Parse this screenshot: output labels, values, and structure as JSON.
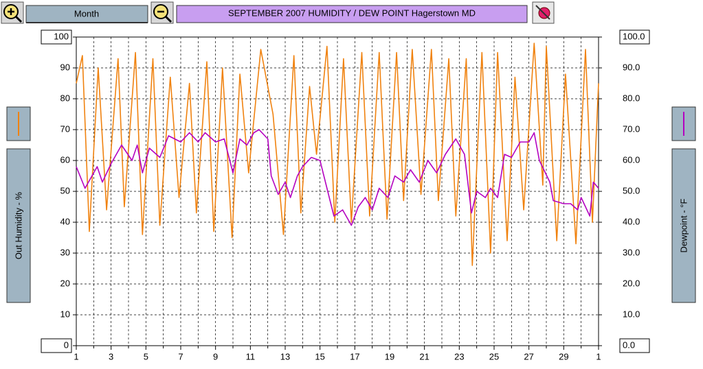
{
  "toolbar": {
    "period_button": "Month"
  },
  "chart_data": {
    "type": "line",
    "title": "SEPTEMBER 2007  HUMIDITY / DEW POINT  Hagerstown MD",
    "xlim": [
      1,
      31
    ],
    "xticks": [
      1,
      3,
      5,
      7,
      9,
      11,
      13,
      15,
      17,
      19,
      21,
      23,
      25,
      27,
      29,
      {
        "value": 31,
        "label": "1"
      }
    ],
    "xminor_ticks": [
      2,
      4,
      6,
      8,
      10,
      12,
      14,
      16,
      18,
      20,
      22,
      24,
      26,
      28,
      30
    ],
    "ylim": [
      0,
      100
    ],
    "yticks": [
      0,
      10,
      20,
      30,
      40,
      50,
      60,
      70,
      80,
      90,
      100
    ],
    "y2lim": [
      0,
      100
    ],
    "y2ticks": [
      {
        "value": 0,
        "label": "0.0"
      },
      {
        "value": 10,
        "label": "10.0"
      },
      {
        "value": 20,
        "label": "20.0"
      },
      {
        "value": 30,
        "label": "30.0"
      },
      {
        "value": 40,
        "label": "40.0"
      },
      {
        "value": 50,
        "label": "50.0"
      },
      {
        "value": 60,
        "label": "60.0"
      },
      {
        "value": 70,
        "label": "70.0"
      },
      {
        "value": 80,
        "label": "80.0"
      },
      {
        "value": 90,
        "label": "90.0"
      },
      {
        "value": 100,
        "label": "100.0"
      }
    ],
    "grid": true,
    "series": [
      {
        "name": "Out Humidity - %",
        "color": "#f0820f",
        "axis": "y",
        "x": [
          1.0,
          1.35,
          1.75,
          2.26,
          2.74,
          3.4,
          3.76,
          4.4,
          4.8,
          5.4,
          5.8,
          6.4,
          6.9,
          7.5,
          7.9,
          8.5,
          8.9,
          9.4,
          9.95,
          10.4,
          10.9,
          11.6,
          12.3,
          12.9,
          13.5,
          13.9,
          14.4,
          14.8,
          15.4,
          15.85,
          16.35,
          16.8,
          17.4,
          17.85,
          18.4,
          18.85,
          19.4,
          19.8,
          20.3,
          20.8,
          21.4,
          21.8,
          22.4,
          22.8,
          23.4,
          23.75,
          24.3,
          24.8,
          25.2,
          25.75,
          26.2,
          26.7,
          27.3,
          27.8,
          28.0,
          28.6,
          29.1,
          29.7,
          30.25,
          30.65,
          31.0
        ],
        "values": [
          85,
          94,
          37,
          90,
          44,
          93,
          45,
          95,
          36,
          93,
          39,
          87,
          48,
          85,
          43,
          92,
          37,
          90,
          35,
          88,
          56,
          96,
          75,
          36,
          94,
          43,
          84,
          62,
          97,
          40,
          93,
          40,
          95,
          42,
          95,
          41,
          95,
          47,
          96,
          49,
          96,
          47,
          93,
          42,
          93,
          26,
          95,
          30,
          95,
          34,
          87,
          44,
          98,
          52,
          97,
          34,
          88,
          33,
          96,
          40,
          85
        ]
      },
      {
        "name": "Dewpoint - °F",
        "color": "#b400c0",
        "axis": "y2",
        "x": [
          1.0,
          1.5,
          2.2,
          2.5,
          3.0,
          3.6,
          4.2,
          4.5,
          4.8,
          5.2,
          5.8,
          6.3,
          7.0,
          7.5,
          8.0,
          8.4,
          9.0,
          9.5,
          10.0,
          10.4,
          10.8,
          11.2,
          11.5,
          12.0,
          12.2,
          12.6,
          13.0,
          13.3,
          13.7,
          14.0,
          14.5,
          15.0,
          15.4,
          15.8,
          16.3,
          16.8,
          17.2,
          17.6,
          18.0,
          18.4,
          18.9,
          19.3,
          19.8,
          20.2,
          20.7,
          21.2,
          21.7,
          22.2,
          22.8,
          23.3,
          23.7,
          24.0,
          24.5,
          24.8,
          25.2,
          25.6,
          26.0,
          26.5,
          27.0,
          27.3,
          27.6,
          28.2,
          28.4,
          29.0,
          29.4,
          29.8,
          30.0,
          30.5,
          30.7,
          31.0
        ],
        "values": [
          58,
          51,
          58,
          53,
          59,
          65,
          60,
          65,
          56,
          64,
          61,
          68,
          66,
          69,
          66,
          69,
          66,
          67,
          56,
          67,
          65,
          69,
          70,
          67,
          55,
          49,
          53,
          48,
          55,
          58,
          61,
          60,
          51,
          42,
          44,
          39,
          45,
          48,
          44,
          51,
          48,
          55,
          53,
          57,
          53,
          60,
          56,
          62,
          67,
          62,
          43,
          50,
          48,
          51,
          48,
          62,
          61,
          66,
          66,
          69,
          60,
          53,
          47,
          46,
          46,
          44,
          48,
          42,
          53,
          51
        ]
      }
    ]
  }
}
